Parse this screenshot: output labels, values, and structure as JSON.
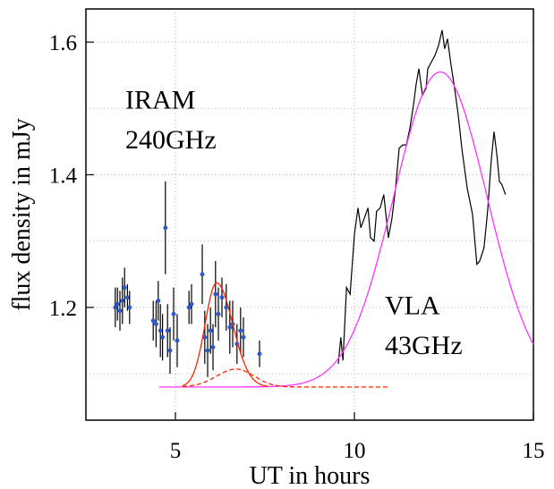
{
  "chart_data": {
    "type": "scatter",
    "xlabel": "UT in hours",
    "ylabel": "flux density in mJy",
    "xlim": [
      2.5,
      15.0
    ],
    "ylim": [
      1.03,
      1.65
    ],
    "x_ticks": [
      {
        "value": 5,
        "label": "5"
      },
      {
        "value": 10,
        "label": "10"
      },
      {
        "value": 15,
        "label": "15"
      }
    ],
    "y_ticks": [
      {
        "value": 1.2,
        "label": "1.2"
      },
      {
        "value": 1.4,
        "label": "1.4"
      },
      {
        "value": 1.6,
        "label": "1.6"
      }
    ],
    "minor_gridlines_y": [
      1.1,
      1.3,
      1.5
    ],
    "grid": "dotted",
    "annotations": [
      {
        "id": "iram",
        "lines": [
          "IRAM",
          "240GHz"
        ],
        "x": 3.6,
        "y": [
          1.5,
          1.44
        ]
      },
      {
        "id": "vla",
        "lines": [
          "VLA",
          "43GHz"
        ],
        "x": 10.85,
        "y": [
          1.19,
          1.13
        ]
      }
    ],
    "series": [
      {
        "key": "iram_points",
        "kind": "errorbar",
        "color": "#2a5bd7",
        "points": [
          {
            "x": 3.32,
            "y": 1.2,
            "err": 0.03
          },
          {
            "x": 3.38,
            "y": 1.205,
            "err": 0.025
          },
          {
            "x": 3.45,
            "y": 1.195,
            "err": 0.03
          },
          {
            "x": 3.52,
            "y": 1.21,
            "err": 0.035
          },
          {
            "x": 3.58,
            "y": 1.23,
            "err": 0.03
          },
          {
            "x": 3.66,
            "y": 1.215,
            "err": 0.02
          },
          {
            "x": 3.72,
            "y": 1.2,
            "err": 0.025
          },
          {
            "x": 4.38,
            "y": 1.18,
            "err": 0.03
          },
          {
            "x": 4.46,
            "y": 1.175,
            "err": 0.035
          },
          {
            "x": 4.52,
            "y": 1.21,
            "err": 0.03
          },
          {
            "x": 4.58,
            "y": 1.165,
            "err": 0.04
          },
          {
            "x": 4.64,
            "y": 1.155,
            "err": 0.035
          },
          {
            "x": 4.72,
            "y": 1.32,
            "err": 0.07
          },
          {
            "x": 4.78,
            "y": 1.165,
            "err": 0.04
          },
          {
            "x": 4.85,
            "y": 1.135,
            "err": 0.035
          },
          {
            "x": 4.95,
            "y": 1.19,
            "err": 0.04
          },
          {
            "x": 5.05,
            "y": 1.15,
            "err": 0.04
          },
          {
            "x": 5.38,
            "y": 1.2,
            "err": 0.025
          },
          {
            "x": 5.45,
            "y": 1.205,
            "err": 0.03
          },
          {
            "x": 5.75,
            "y": 1.25,
            "err": 0.045
          },
          {
            "x": 5.82,
            "y": 1.155,
            "err": 0.04
          },
          {
            "x": 5.9,
            "y": 1.135,
            "err": 0.04
          },
          {
            "x": 5.98,
            "y": 1.165,
            "err": 0.035
          },
          {
            "x": 6.05,
            "y": 1.14,
            "err": 0.035
          },
          {
            "x": 6.12,
            "y": 1.22,
            "err": 0.05
          },
          {
            "x": 6.2,
            "y": 1.19,
            "err": 0.04
          },
          {
            "x": 6.3,
            "y": 1.215,
            "err": 0.03
          },
          {
            "x": 6.42,
            "y": 1.2,
            "err": 0.035
          },
          {
            "x": 6.52,
            "y": 1.17,
            "err": 0.04
          },
          {
            "x": 6.6,
            "y": 1.175,
            "err": 0.035
          },
          {
            "x": 6.72,
            "y": 1.145,
            "err": 0.03
          },
          {
            "x": 6.82,
            "y": 1.165,
            "err": 0.035
          },
          {
            "x": 6.9,
            "y": 1.155,
            "err": 0.03
          },
          {
            "x": 7.35,
            "y": 1.13,
            "err": 0.02
          }
        ]
      },
      {
        "key": "vla_data",
        "kind": "line",
        "color": "#000000",
        "points": [
          [
            9.55,
            1.115
          ],
          [
            9.62,
            1.155
          ],
          [
            9.68,
            1.12
          ],
          [
            9.78,
            1.23
          ],
          [
            9.88,
            1.22
          ],
          [
            10.0,
            1.31
          ],
          [
            10.1,
            1.35
          ],
          [
            10.18,
            1.32
          ],
          [
            10.28,
            1.335
          ],
          [
            10.38,
            1.35
          ],
          [
            10.45,
            1.305
          ],
          [
            10.55,
            1.3
          ],
          [
            10.62,
            1.345
          ],
          [
            10.72,
            1.35
          ],
          [
            10.82,
            1.37
          ],
          [
            10.95,
            1.305
          ],
          [
            11.05,
            1.335
          ],
          [
            11.15,
            1.38
          ],
          [
            11.25,
            1.44
          ],
          [
            11.35,
            1.445
          ],
          [
            11.45,
            1.445
          ],
          [
            11.55,
            1.47
          ],
          [
            11.65,
            1.505
          ],
          [
            11.72,
            1.535
          ],
          [
            11.8,
            1.56
          ],
          [
            11.9,
            1.52
          ],
          [
            12.0,
            1.53
          ],
          [
            12.05,
            1.56
          ],
          [
            12.15,
            1.57
          ],
          [
            12.25,
            1.58
          ],
          [
            12.35,
            1.595
          ],
          [
            12.45,
            1.618
          ],
          [
            12.52,
            1.59
          ],
          [
            12.6,
            1.605
          ],
          [
            12.7,
            1.565
          ],
          [
            12.8,
            1.53
          ],
          [
            12.9,
            1.49
          ],
          [
            13.0,
            1.44
          ],
          [
            13.15,
            1.38
          ],
          [
            13.3,
            1.34
          ],
          [
            13.42,
            1.265
          ],
          [
            13.5,
            1.27
          ],
          [
            13.62,
            1.29
          ],
          [
            13.72,
            1.345
          ],
          [
            13.82,
            1.42
          ],
          [
            13.9,
            1.465
          ],
          [
            13.98,
            1.43
          ],
          [
            14.05,
            1.39
          ],
          [
            14.12,
            1.385
          ],
          [
            14.22,
            1.37
          ]
        ]
      },
      {
        "key": "vla_fit",
        "kind": "gaussian",
        "color": "#ff33ff",
        "baseline": 1.08,
        "amplitude": 0.475,
        "center": 12.4,
        "sigma": 1.3,
        "x_range": [
          4.55,
          15.0
        ]
      },
      {
        "key": "iram_fit_main",
        "kind": "flare",
        "color": "#ff2200",
        "style": "solid",
        "baseline": 1.08,
        "amplitude": 0.157,
        "peak": 6.15,
        "sigma_rise": 0.32,
        "sigma_fall": 0.45,
        "x_range": [
          5.2,
          7.6
        ]
      },
      {
        "key": "iram_fit_secondary",
        "kind": "flare",
        "color": "#ff2200",
        "style": "dashed",
        "baseline": 1.08,
        "amplitude": 0.027,
        "peak": 6.7,
        "sigma_rise": 0.55,
        "sigma_fall": 0.5,
        "x_range": [
          5.2,
          10.95
        ]
      }
    ]
  }
}
